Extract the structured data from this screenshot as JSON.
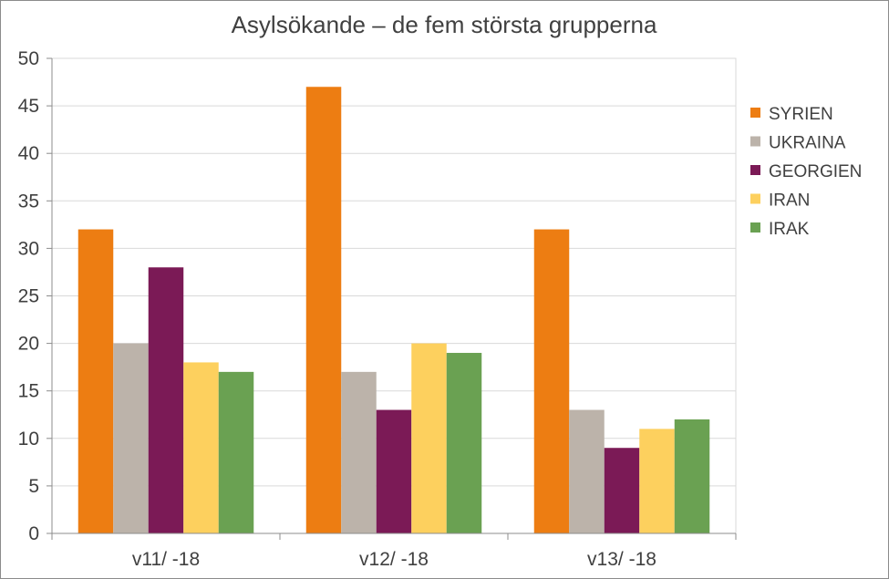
{
  "chart_data": {
    "type": "bar",
    "title": "Asylsökande – de fem största grupperna",
    "xlabel": "",
    "ylabel": "",
    "ylim": [
      0,
      50
    ],
    "yticks": [
      0,
      5,
      10,
      15,
      20,
      25,
      30,
      35,
      40,
      45,
      50
    ],
    "grid": true,
    "legend_position": "right",
    "categories": [
      "v11/ -18",
      "v12/ -18",
      "v13/ -18"
    ],
    "series": [
      {
        "name": "SYRIEN",
        "color": "#ed7d12",
        "values": [
          32,
          47,
          32
        ]
      },
      {
        "name": "UKRAINA",
        "color": "#bcb3aa",
        "values": [
          20,
          17,
          13
        ]
      },
      {
        "name": "GEORGIEN",
        "color": "#7b1a56",
        "values": [
          28,
          13,
          9
        ]
      },
      {
        "name": "IRAN",
        "color": "#fdd05e",
        "values": [
          18,
          20,
          11
        ]
      },
      {
        "name": "IRAK",
        "color": "#6aa152",
        "values": [
          17,
          19,
          12
        ]
      }
    ]
  }
}
